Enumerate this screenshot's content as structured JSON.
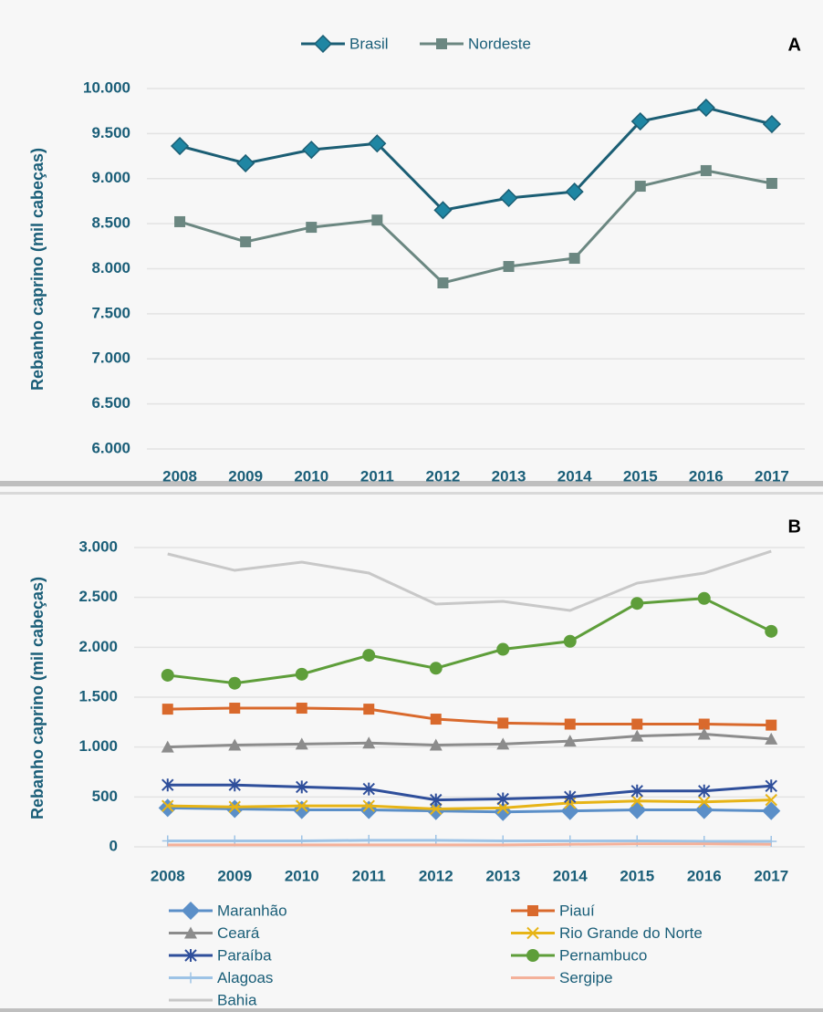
{
  "chart_data": [
    {
      "type": "line",
      "panel_label": "A",
      "y_label": "Rebanho caprino (mil cabeças)",
      "categories": [
        "2008",
        "2009",
        "2010",
        "2011",
        "2012",
        "2013",
        "2014",
        "2015",
        "2016",
        "2017"
      ],
      "series": [
        {
          "name": "Brasil",
          "color": "#1b5e74",
          "marker_color": "#1f86a3",
          "marker": "diamond",
          "values": [
            9362,
            9170,
            9320,
            9390,
            8650,
            8785,
            8855,
            9635,
            9787,
            9605
          ]
        },
        {
          "name": "Nordeste",
          "color": "#6b8781",
          "marker_color": "#6b8781",
          "marker": "square",
          "values": [
            8522,
            8299,
            8460,
            8540,
            7843,
            8025,
            8116,
            8916,
            9089,
            8947
          ]
        }
      ],
      "ylim": [
        6000,
        10000
      ],
      "yticks": [
        {
          "value": 6000,
          "label": "6.000"
        },
        {
          "value": 6500,
          "label": "6.500"
        },
        {
          "value": 7000,
          "label": "7.000"
        },
        {
          "value": 7500,
          "label": "7.500"
        },
        {
          "value": 8000,
          "label": "8.000"
        },
        {
          "value": 8500,
          "label": "8.500"
        },
        {
          "value": 9000,
          "label": "9.000"
        },
        {
          "value": 9500,
          "label": "9.500"
        },
        {
          "value": 10000,
          "label": "10.000"
        }
      ],
      "grid": true,
      "legend": "top"
    },
    {
      "type": "line",
      "panel_label": "B",
      "y_label": "Rebanho caprino (mil cabeças)",
      "categories": [
        "2008",
        "2009",
        "2010",
        "2011",
        "2012",
        "2013",
        "2014",
        "2015",
        "2016",
        "2017"
      ],
      "series": [
        {
          "name": "Maranhão",
          "color": "#5b8fc8",
          "marker": "diamond",
          "values": [
            390,
            380,
            370,
            370,
            360,
            350,
            360,
            370,
            370,
            360
          ]
        },
        {
          "name": "Piauí",
          "color": "#d9692c",
          "marker": "square",
          "values": [
            1380,
            1390,
            1390,
            1380,
            1280,
            1240,
            1230,
            1230,
            1230,
            1220
          ]
        },
        {
          "name": "Ceará",
          "color": "#8c8c8c",
          "marker": "triangle",
          "values": [
            1000,
            1020,
            1030,
            1040,
            1020,
            1030,
            1060,
            1110,
            1130,
            1080
          ]
        },
        {
          "name": "Rio Grande do Norte",
          "color": "#e7b416",
          "marker": "x",
          "values": [
            410,
            400,
            410,
            410,
            380,
            390,
            440,
            460,
            450,
            470
          ]
        },
        {
          "name": "Paraíba",
          "color": "#2f4f9b",
          "marker": "star",
          "values": [
            620,
            620,
            600,
            580,
            470,
            480,
            500,
            560,
            560,
            610
          ]
        },
        {
          "name": "Pernambuco",
          "color": "#5e9e3a",
          "marker": "circle",
          "values": [
            1720,
            1640,
            1730,
            1920,
            1790,
            1980,
            2060,
            2440,
            2490,
            2160
          ]
        },
        {
          "name": "Alagoas",
          "color": "#9dc3e6",
          "marker": "plus",
          "values": [
            60,
            60,
            60,
            65,
            65,
            60,
            60,
            60,
            55,
            55
          ]
        },
        {
          "name": "Sergipe",
          "color": "#f4b19a",
          "marker": "none",
          "values": [
            20,
            20,
            20,
            20,
            20,
            20,
            25,
            30,
            30,
            25
          ]
        },
        {
          "name": "Bahia",
          "color": "#c8c8c8",
          "marker": "none",
          "values": [
            2936,
            2771,
            2854,
            2744,
            2433,
            2460,
            2369,
            2643,
            2744,
            2963
          ]
        }
      ],
      "ylim": [
        0,
        3000
      ],
      "yticks": [
        0,
        500,
        {
          "value": 1000,
          "label": "1.000"
        },
        {
          "value": 1500,
          "label": "1.500"
        },
        {
          "value": 2000,
          "label": "2.000"
        },
        {
          "value": 2500,
          "label": "2.500"
        },
        {
          "value": 3000,
          "label": "3.000"
        }
      ],
      "grid": true,
      "legend": "bottom"
    }
  ]
}
